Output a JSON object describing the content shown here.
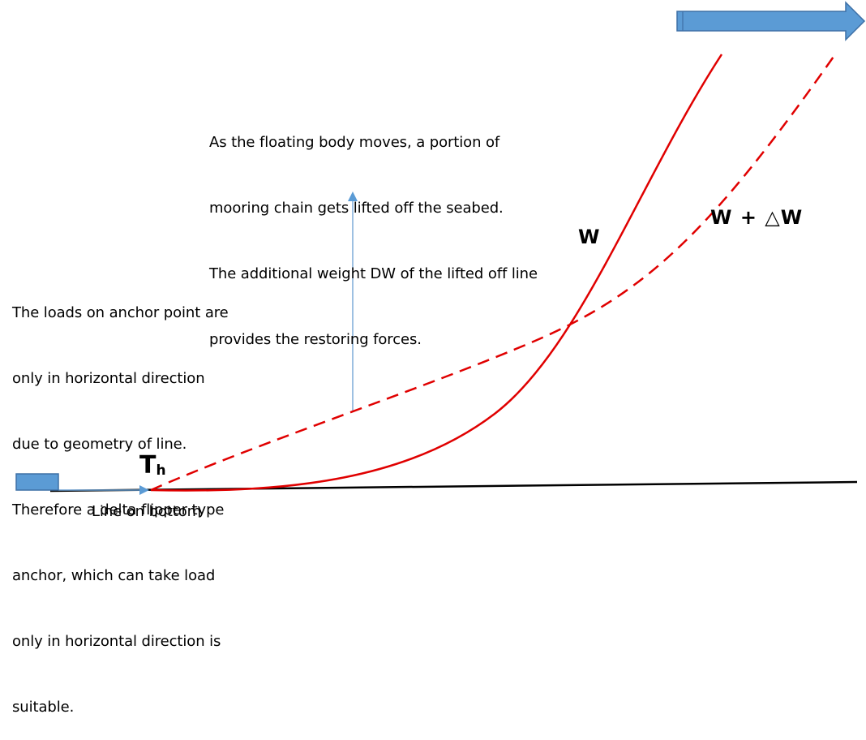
{
  "diagram": {
    "notes": {
      "top": [
        "As the floating body moves, a portion of",
        "mooring chain gets lifted off the seabed.",
        "The additional weight DW of the lifted off line",
        "provides the restoring forces."
      ],
      "left": [
        "The loads on anchor point are",
        "only in horizontal direction",
        "due to geometry of line.",
        "Therefore a delta flipper type",
        "anchor, which can take load",
        "only in horizontal direction is",
        "suitable."
      ]
    },
    "labels": {
      "w": "W",
      "w_plus_dw": "W + △W",
      "th_main": "T",
      "th_sub": "h",
      "bottom": "Line on bottom"
    },
    "colors": {
      "chain": "#e00000",
      "arrow_fill": "#5b9bd5",
      "arrow_stroke": "#3e70a6",
      "seabed": "#000000",
      "pointer": "#6a9fd3"
    }
  }
}
